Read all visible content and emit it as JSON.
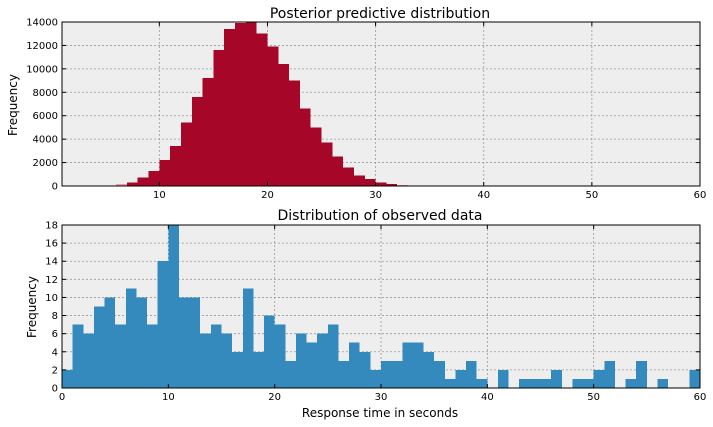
{
  "chart_data": [
    {
      "type": "bar",
      "title": "Posterior predictive distribution",
      "xlabel": "",
      "ylabel": "Frequency",
      "xlim": [
        1,
        60
      ],
      "ylim": [
        0,
        14000
      ],
      "xticks": [
        "10",
        "20",
        "30",
        "40",
        "50",
        "60"
      ],
      "yticks": [
        "0",
        "2000",
        "4000",
        "6000",
        "8000",
        "10000",
        "12000",
        "14000"
      ],
      "grid": true,
      "bin_width": 1,
      "bins": [
        {
          "x": 5,
          "v": 60,
          "tail": true
        },
        {
          "x": 6,
          "v": 150,
          "tail": true
        },
        {
          "x": 7,
          "v": 320,
          "tail": false
        },
        {
          "x": 8,
          "v": 720,
          "tail": false
        },
        {
          "x": 9,
          "v": 1300,
          "tail": false
        },
        {
          "x": 10,
          "v": 2200,
          "tail": false
        },
        {
          "x": 11,
          "v": 3400,
          "tail": false
        },
        {
          "x": 12,
          "v": 5400,
          "tail": false
        },
        {
          "x": 13,
          "v": 7600,
          "tail": false
        },
        {
          "x": 14,
          "v": 9200,
          "tail": false
        },
        {
          "x": 15,
          "v": 11600,
          "tail": false
        },
        {
          "x": 16,
          "v": 13400,
          "tail": false
        },
        {
          "x": 17,
          "v": 13900,
          "tail": false
        },
        {
          "x": 18,
          "v": 14000,
          "tail": false
        },
        {
          "x": 19,
          "v": 13000,
          "tail": false
        },
        {
          "x": 20,
          "v": 11900,
          "tail": false
        },
        {
          "x": 21,
          "v": 10400,
          "tail": false
        },
        {
          "x": 22,
          "v": 9000,
          "tail": false
        },
        {
          "x": 23,
          "v": 6600,
          "tail": false
        },
        {
          "x": 24,
          "v": 5000,
          "tail": false
        },
        {
          "x": 25,
          "v": 3700,
          "tail": false
        },
        {
          "x": 26,
          "v": 2500,
          "tail": false
        },
        {
          "x": 27,
          "v": 1600,
          "tail": false
        },
        {
          "x": 28,
          "v": 900,
          "tail": false
        },
        {
          "x": 29,
          "v": 600,
          "tail": false
        },
        {
          "x": 30,
          "v": 300,
          "tail": false
        },
        {
          "x": 31,
          "v": 150,
          "tail": false
        },
        {
          "x": 32,
          "v": 80,
          "tail": true
        },
        {
          "x": 33,
          "v": 40,
          "tail": true
        }
      ],
      "colors": {
        "bar": "#a60628",
        "tail": "#e89aa8",
        "background": "#eeeeee"
      }
    },
    {
      "type": "bar",
      "title": "Distribution of observed data",
      "xlabel": "Response time in seconds",
      "ylabel": "Frequency",
      "xlim": [
        0,
        60
      ],
      "ylim": [
        0,
        18
      ],
      "xticks": [
        "0",
        "10",
        "20",
        "30",
        "40",
        "50",
        "60"
      ],
      "yticks": [
        "0",
        "2",
        "4",
        "6",
        "8",
        "10",
        "12",
        "14",
        "16",
        "18"
      ],
      "grid": true,
      "bin_width": 1,
      "bins": [
        {
          "x": 0,
          "v": 2
        },
        {
          "x": 1,
          "v": 7
        },
        {
          "x": 2,
          "v": 6
        },
        {
          "x": 3,
          "v": 9
        },
        {
          "x": 4,
          "v": 10
        },
        {
          "x": 5,
          "v": 7
        },
        {
          "x": 6,
          "v": 11
        },
        {
          "x": 7,
          "v": 10
        },
        {
          "x": 8,
          "v": 7
        },
        {
          "x": 9,
          "v": 14
        },
        {
          "x": 10,
          "v": 18
        },
        {
          "x": 11,
          "v": 10
        },
        {
          "x": 12,
          "v": 10
        },
        {
          "x": 13,
          "v": 6
        },
        {
          "x": 14,
          "v": 7
        },
        {
          "x": 15,
          "v": 6
        },
        {
          "x": 16,
          "v": 4
        },
        {
          "x": 17,
          "v": 11
        },
        {
          "x": 18,
          "v": 4
        },
        {
          "x": 19,
          "v": 8
        },
        {
          "x": 20,
          "v": 7
        },
        {
          "x": 21,
          "v": 3
        },
        {
          "x": 22,
          "v": 6
        },
        {
          "x": 23,
          "v": 5
        },
        {
          "x": 24,
          "v": 6
        },
        {
          "x": 25,
          "v": 7
        },
        {
          "x": 26,
          "v": 3
        },
        {
          "x": 27,
          "v": 5
        },
        {
          "x": 28,
          "v": 4
        },
        {
          "x": 29,
          "v": 2
        },
        {
          "x": 30,
          "v": 3
        },
        {
          "x": 31,
          "v": 3
        },
        {
          "x": 32,
          "v": 5
        },
        {
          "x": 33,
          "v": 5
        },
        {
          "x": 34,
          "v": 4
        },
        {
          "x": 35,
          "v": 3
        },
        {
          "x": 36,
          "v": 1
        },
        {
          "x": 37,
          "v": 2
        },
        {
          "x": 38,
          "v": 3
        },
        {
          "x": 39,
          "v": 1
        },
        {
          "x": 40,
          "v": 0
        },
        {
          "x": 41,
          "v": 2
        },
        {
          "x": 42,
          "v": 0
        },
        {
          "x": 43,
          "v": 1
        },
        {
          "x": 44,
          "v": 1
        },
        {
          "x": 45,
          "v": 1
        },
        {
          "x": 46,
          "v": 2
        },
        {
          "x": 47,
          "v": 0
        },
        {
          "x": 48,
          "v": 1
        },
        {
          "x": 49,
          "v": 1
        },
        {
          "x": 50,
          "v": 2
        },
        {
          "x": 51,
          "v": 3
        },
        {
          "x": 52,
          "v": 0
        },
        {
          "x": 53,
          "v": 1
        },
        {
          "x": 54,
          "v": 3
        },
        {
          "x": 55,
          "v": 0
        },
        {
          "x": 56,
          "v": 1
        },
        {
          "x": 57,
          "v": 0
        },
        {
          "x": 58,
          "v": 0
        },
        {
          "x": 59,
          "v": 2
        }
      ],
      "colors": {
        "bar": "#348abd",
        "background": "#eeeeee"
      }
    }
  ]
}
